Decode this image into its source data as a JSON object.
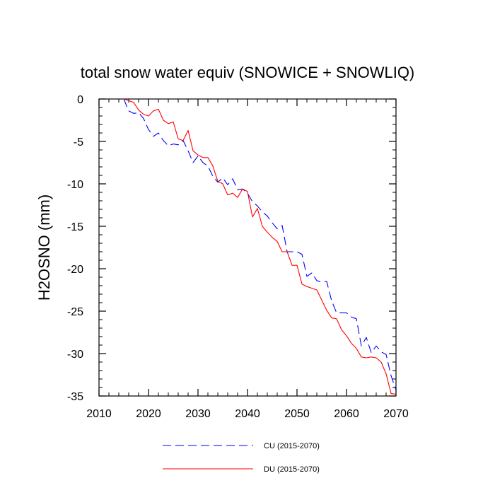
{
  "chart_data": {
    "type": "line",
    "title": "total snow water equiv (SNOWICE + SNOWLIQ)",
    "xlabel": "",
    "ylabel": "H2OSNO  (mm)",
    "xlim": [
      2010,
      2070
    ],
    "ylim": [
      -35,
      0
    ],
    "xticks": [
      2010,
      2020,
      2030,
      2040,
      2050,
      2060,
      2070
    ],
    "yticks": [
      0,
      -5,
      -10,
      -15,
      -20,
      -25,
      -30,
      -35
    ],
    "grid": false,
    "legend_position": "bottom-center",
    "series": [
      {
        "name": "CU (2015-2070)",
        "color": "#0000ff",
        "dash": "dashed",
        "x": [
          2015,
          2016,
          2017,
          2018,
          2019,
          2020,
          2021,
          2022,
          2023,
          2024,
          2025,
          2026,
          2027,
          2028,
          2029,
          2030,
          2031,
          2032,
          2033,
          2034,
          2035,
          2036,
          2037,
          2038,
          2039,
          2040,
          2041,
          2042,
          2043,
          2044,
          2045,
          2046,
          2047,
          2048,
          2049,
          2050,
          2051,
          2052,
          2053,
          2054,
          2055,
          2056,
          2057,
          2058,
          2059,
          2060,
          2061,
          2062,
          2063,
          2064,
          2065,
          2066,
          2067,
          2068,
          2069,
          2070
        ],
        "values": [
          0,
          -1.4,
          -1.7,
          -1.6,
          -2.3,
          -3.6,
          -4.4,
          -4.0,
          -4.9,
          -5.5,
          -5.3,
          -5.4,
          -4.9,
          -6.1,
          -7.5,
          -6.7,
          -7.5,
          -7.9,
          -9.1,
          -9.8,
          -9.3,
          -10.1,
          -9.4,
          -10.7,
          -10.6,
          -11.1,
          -12.1,
          -12.6,
          -13.3,
          -13.8,
          -14.6,
          -15.3,
          -14.9,
          -18.0,
          -18.0,
          -18.0,
          -18.3,
          -20.9,
          -20.5,
          -21.4,
          -21.6,
          -21.5,
          -23.8,
          -25.2,
          -25.2,
          -25.2,
          -25.7,
          -25.9,
          -29.1,
          -28.1,
          -29.9,
          -29.1,
          -29.8,
          -30.1,
          -32.6,
          -34.3
        ]
      },
      {
        "name": "DU (2015-2070)",
        "color": "#ff0000",
        "dash": "solid",
        "x": [
          2015,
          2016,
          2017,
          2018,
          2019,
          2020,
          2021,
          2022,
          2023,
          2024,
          2025,
          2026,
          2027,
          2028,
          2029,
          2030,
          2031,
          2032,
          2033,
          2034,
          2035,
          2036,
          2037,
          2038,
          2039,
          2040,
          2041,
          2042,
          2043,
          2044,
          2045,
          2046,
          2047,
          2048,
          2049,
          2050,
          2051,
          2052,
          2053,
          2054,
          2055,
          2056,
          2057,
          2058,
          2059,
          2060,
          2061,
          2062,
          2063,
          2064,
          2065,
          2066,
          2067,
          2068,
          2069,
          2070
        ],
        "values": [
          0,
          -0.2,
          -0.4,
          -1.3,
          -1.8,
          -2.0,
          -1.4,
          -1.2,
          -2.5,
          -2.9,
          -2.7,
          -4.7,
          -4.9,
          -3.7,
          -6.1,
          -6.6,
          -6.9,
          -6.9,
          -7.9,
          -9.7,
          -10.0,
          -11.3,
          -11.1,
          -11.6,
          -10.6,
          -10.9,
          -13.9,
          -12.9,
          -15.0,
          -15.7,
          -16.3,
          -16.8,
          -18.0,
          -18.0,
          -19.6,
          -19.6,
          -21.8,
          -22.1,
          -22.3,
          -22.5,
          -23.7,
          -24.9,
          -25.8,
          -25.9,
          -27.2,
          -27.9,
          -28.8,
          -29.4,
          -30.4,
          -30.5,
          -30.4,
          -30.5,
          -31.0,
          -32.4,
          -34.7,
          -34.8
        ]
      }
    ]
  }
}
